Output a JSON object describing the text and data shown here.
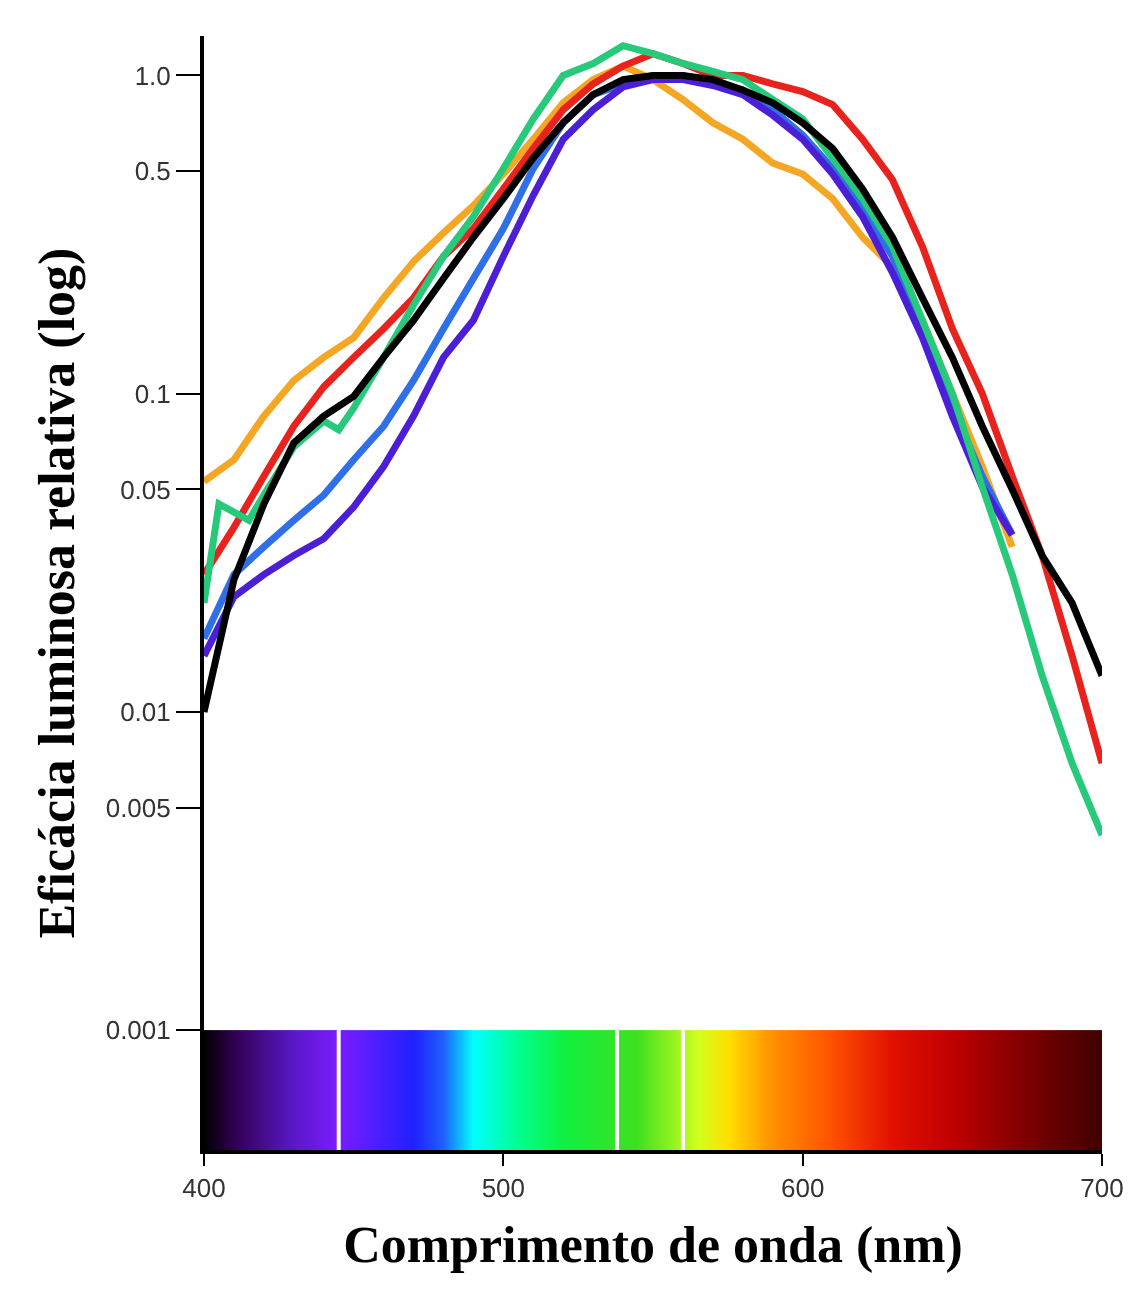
{
  "chart_data": {
    "type": "line",
    "xlabel": "Comprimento de onda (nm)",
    "ylabel": "Eficácia luminosa relativa (log)",
    "log": "y",
    "grid": false,
    "marker": "none",
    "line_style": "solid",
    "x": [
      400,
      410,
      420,
      430,
      440,
      450,
      460,
      470,
      480,
      490,
      500,
      510,
      520,
      530,
      540,
      550,
      560,
      570,
      580,
      590,
      600,
      610,
      620,
      630,
      640,
      650,
      660,
      670,
      680,
      690,
      700
    ],
    "xlim": [
      400,
      700
    ],
    "xticks": [
      400,
      500,
      600,
      700
    ],
    "ylim": [
      0.00042,
      1.33
    ],
    "yticks": [
      0.001,
      0.005,
      0.01,
      0.05,
      0.1,
      0.5,
      {
        "value": 1,
        "label": "1.0"
      }
    ],
    "series": [
      {
        "color": "#f5a623",
        "values": [
          0.053,
          0.062,
          0.085,
          0.11,
          0.13,
          0.15,
          0.2,
          0.26,
          0.32,
          0.39,
          0.49,
          0.63,
          0.82,
          0.97,
          1.07,
          0.97,
          0.84,
          0.71,
          0.63,
          0.53,
          0.49,
          0.41,
          0.31,
          0.25,
          0.17,
          0.1,
          0.059,
          0.033,
          null,
          null,
          null
        ]
      },
      {
        "color": "#2f6fe8",
        "values": [
          0.017,
          0.027,
          0.033,
          0.04,
          0.048,
          0.062,
          0.079,
          0.11,
          0.16,
          0.23,
          0.33,
          0.51,
          0.71,
          0.87,
          0.94,
          1.0,
          1.0,
          0.94,
          0.9,
          0.78,
          0.65,
          0.51,
          0.38,
          0.27,
          0.16,
          0.091,
          0.055,
          0.036,
          null,
          null,
          null
        ]
      },
      {
        "color": "#4b1fd6",
        "values": [
          0.015,
          0.023,
          0.027,
          0.031,
          0.035,
          0.044,
          0.059,
          0.085,
          0.13,
          0.17,
          0.27,
          0.42,
          0.63,
          0.78,
          0.92,
          0.97,
          0.97,
          0.93,
          0.87,
          0.75,
          0.63,
          0.49,
          0.36,
          0.24,
          0.15,
          0.085,
          0.051,
          0.036,
          null,
          null,
          null
        ]
      },
      {
        "color": "#e8221c",
        "values": [
          0.027,
          0.038,
          0.055,
          0.079,
          0.105,
          0.13,
          0.16,
          0.2,
          0.27,
          0.33,
          0.44,
          0.59,
          0.78,
          0.94,
          1.07,
          1.17,
          1.09,
          1.0,
          1.0,
          0.94,
          0.89,
          0.81,
          0.63,
          0.47,
          0.29,
          0.16,
          0.1,
          0.055,
          0.031,
          0.015,
          0.0069
        ]
      },
      {
        "color": "#27c97a",
        "x": [
          400,
          405,
          415,
          420,
          430,
          440,
          445,
          450,
          460,
          470,
          480,
          490,
          500,
          510,
          520,
          530,
          540,
          550,
          560,
          570,
          580,
          590,
          600,
          610,
          620,
          630,
          640,
          650,
          660,
          670,
          680,
          690,
          700
        ],
        "values": [
          0.022,
          0.045,
          0.04,
          0.048,
          0.068,
          0.082,
          0.077,
          0.09,
          0.13,
          0.19,
          0.27,
          0.36,
          0.51,
          0.73,
          1.0,
          1.09,
          1.24,
          1.17,
          1.09,
          1.03,
          0.97,
          0.84,
          0.73,
          0.55,
          0.41,
          0.29,
          0.17,
          0.1,
          0.051,
          0.027,
          0.013,
          0.0069,
          0.0041
        ]
      },
      {
        "color": "#000000",
        "values": [
          0.01,
          0.026,
          0.045,
          0.07,
          0.085,
          0.098,
          0.13,
          0.17,
          0.23,
          0.31,
          0.41,
          0.55,
          0.71,
          0.87,
          0.97,
          1.0,
          1.0,
          0.97,
          0.9,
          0.82,
          0.71,
          0.59,
          0.44,
          0.31,
          0.2,
          0.13,
          0.079,
          0.05,
          0.031,
          0.022,
          0.013
        ]
      }
    ]
  }
}
